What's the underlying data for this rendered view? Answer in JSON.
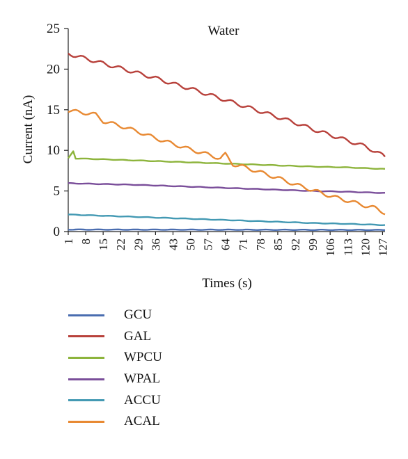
{
  "chart_data": {
    "type": "line",
    "title": "Water",
    "xlabel": "Times (s)",
    "ylabel": "Current (nA)",
    "ylim": [
      0,
      25
    ],
    "yticks": [
      0,
      5,
      10,
      15,
      20,
      25
    ],
    "xlim": [
      1,
      128
    ],
    "xticks": [
      1,
      8,
      15,
      22,
      29,
      36,
      43,
      50,
      57,
      64,
      71,
      78,
      85,
      92,
      99,
      106,
      113,
      120,
      127
    ],
    "xtick_labels": [
      "1",
      "8",
      "15",
      "22",
      "29",
      "36",
      "43",
      "50",
      "57",
      "64",
      "71",
      "78",
      "85",
      "92",
      "99",
      "106",
      "113",
      "120",
      "127"
    ],
    "grid": false,
    "legend_position": "bottom",
    "series": [
      {
        "name": "GCU",
        "color": "#4a6db0",
        "x": [
          1,
          128
        ],
        "y": [
          0.25,
          0.2
        ]
      },
      {
        "name": "GAL",
        "color": "#b8413b",
        "x": [
          1,
          8,
          15,
          22,
          29,
          36,
          43,
          50,
          57,
          64,
          71,
          78,
          85,
          92,
          99,
          106,
          113,
          120,
          127,
          128
        ],
        "y": [
          21.9,
          21.3,
          20.7,
          20.1,
          19.5,
          18.9,
          18.2,
          17.6,
          16.9,
          16.2,
          15.5,
          14.8,
          14.1,
          13.4,
          12.6,
          11.9,
          11.2,
          10.5,
          9.4,
          9.2
        ]
      },
      {
        "name": "WPCU",
        "color": "#8db43c",
        "x": [
          1,
          3,
          4,
          5,
          15,
          29,
          43,
          57,
          71,
          85,
          99,
          113,
          128
        ],
        "y": [
          9.0,
          9.9,
          9.0,
          9.0,
          8.9,
          8.75,
          8.6,
          8.45,
          8.3,
          8.15,
          8.0,
          7.9,
          7.7
        ]
      },
      {
        "name": "WPAL",
        "color": "#7a4e9a",
        "x": [
          1,
          15,
          29,
          43,
          57,
          71,
          85,
          99,
          113,
          128
        ],
        "y": [
          5.95,
          5.85,
          5.75,
          5.6,
          5.45,
          5.3,
          5.15,
          5.0,
          4.9,
          4.75
        ]
      },
      {
        "name": "ACCU",
        "color": "#4399b3",
        "x": [
          1,
          15,
          29,
          43,
          57,
          71,
          85,
          99,
          113,
          128
        ],
        "y": [
          2.1,
          1.95,
          1.8,
          1.65,
          1.5,
          1.35,
          1.2,
          1.05,
          0.95,
          0.8
        ]
      },
      {
        "name": "ACAL",
        "color": "#e88932",
        "x": [
          1,
          8,
          12,
          15,
          22,
          29,
          36,
          43,
          50,
          57,
          62,
          64,
          67,
          71,
          78,
          85,
          92,
          99,
          106,
          113,
          120,
          124,
          128
        ],
        "y": [
          14.9,
          14.6,
          14.4,
          13.6,
          13.0,
          12.3,
          11.5,
          10.8,
          10.1,
          9.5,
          9.0,
          9.5,
          8.3,
          8.0,
          7.3,
          6.6,
          5.8,
          5.1,
          4.4,
          3.8,
          3.2,
          2.9,
          2.3
        ]
      }
    ]
  }
}
